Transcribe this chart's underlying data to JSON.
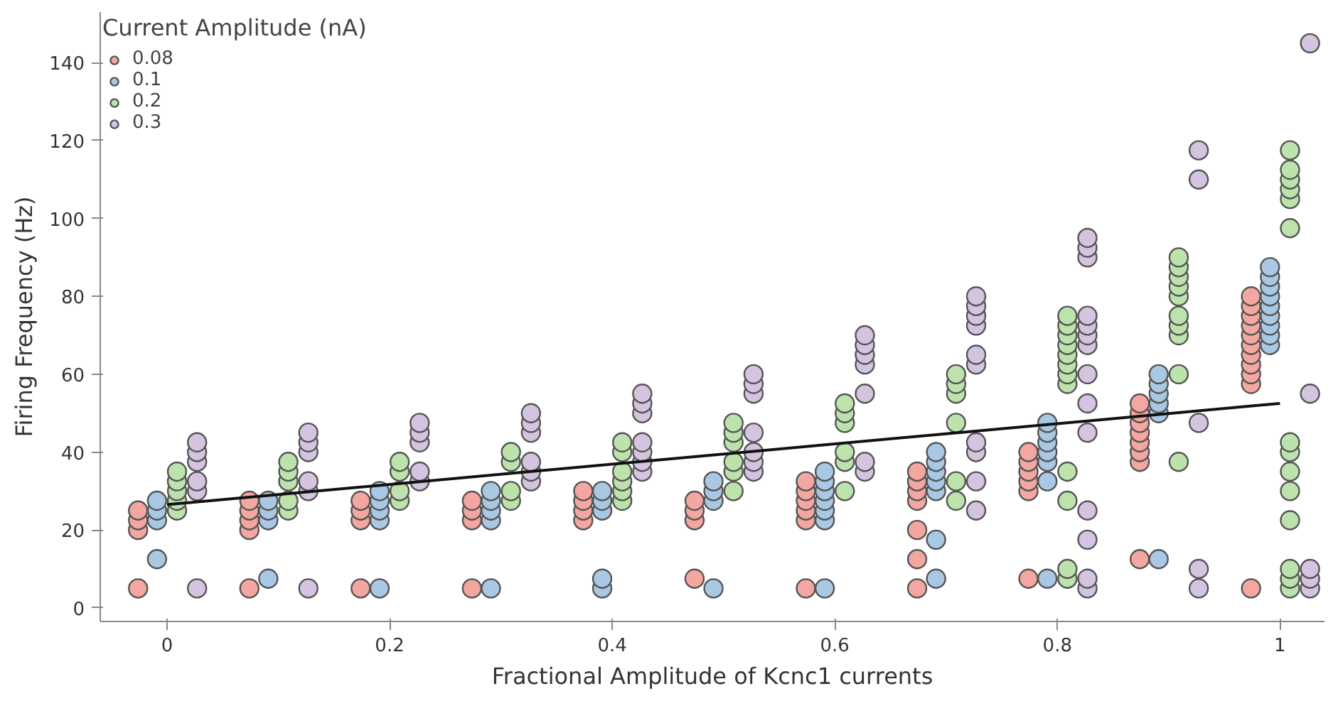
{
  "chart_data": {
    "type": "scatter",
    "xlabel": "Fractional Amplitude of Kcnc1 currents",
    "ylabel": "Firing Frequency (Hz)",
    "legend_title": "Current Amplitude (nA)",
    "legend": "top left",
    "grid": false,
    "xlim": [
      -0.06,
      1.04
    ],
    "ylim": [
      -3.5,
      153
    ],
    "xticks": [
      0,
      0.2,
      0.4,
      0.6,
      0.8,
      1
    ],
    "yticks": [
      0,
      20,
      40,
      60,
      80,
      100,
      120,
      140
    ],
    "series": [
      {
        "name": "0.08",
        "color": "#f4a6a0",
        "marker": "circle",
        "x": [
          -0.026,
          -0.026,
          -0.026,
          -0.026,
          0.074,
          0.074,
          0.074,
          0.074,
          0.074,
          0.174,
          0.174,
          0.174,
          0.174,
          0.274,
          0.274,
          0.274,
          0.274,
          0.374,
          0.374,
          0.374,
          0.374,
          0.474,
          0.474,
          0.474,
          0.474,
          0.574,
          0.574,
          0.574,
          0.574,
          0.574,
          0.574,
          0.674,
          0.674,
          0.674,
          0.674,
          0.674,
          0.674,
          0.674,
          0.774,
          0.774,
          0.774,
          0.774,
          0.774,
          0.774,
          0.874,
          0.874,
          0.874,
          0.874,
          0.874,
          0.874,
          0.874,
          0.874,
          0.974,
          0.974,
          0.974,
          0.974,
          0.974,
          0.974,
          0.974,
          0.974,
          0.974,
          0.974,
          0.974
        ],
        "values": [
          5,
          20,
          22.5,
          25,
          5,
          20,
          22.5,
          25,
          27.5,
          5,
          22.5,
          25,
          27.5,
          5,
          22.5,
          25,
          27.5,
          22.5,
          25,
          27.5,
          30,
          7.5,
          22.5,
          25,
          27.5,
          5,
          22.5,
          25,
          27.5,
          30,
          32.5,
          5,
          12.5,
          20,
          27.5,
          30,
          32.5,
          35,
          7.5,
          30,
          32.5,
          35,
          37.5,
          40,
          12.5,
          37.5,
          40,
          42.5,
          45,
          47.5,
          50,
          52.5,
          5,
          57.5,
          60,
          62.5,
          65,
          67.5,
          70,
          72.5,
          75,
          77.5,
          80
        ]
      },
      {
        "name": "0.1",
        "color": "#a8c8e4",
        "marker": "circle",
        "x": [
          -0.009,
          -0.009,
          -0.009,
          -0.009,
          0.091,
          0.091,
          0.091,
          0.091,
          0.191,
          0.191,
          0.191,
          0.191,
          0.191,
          0.291,
          0.291,
          0.291,
          0.291,
          0.291,
          0.391,
          0.391,
          0.391,
          0.391,
          0.391,
          0.491,
          0.491,
          0.491,
          0.491,
          0.591,
          0.591,
          0.591,
          0.591,
          0.591,
          0.591,
          0.591,
          0.691,
          0.691,
          0.691,
          0.691,
          0.691,
          0.691,
          0.691,
          0.791,
          0.791,
          0.791,
          0.791,
          0.791,
          0.791,
          0.791,
          0.891,
          0.891,
          0.891,
          0.891,
          0.891,
          0.891,
          0.991,
          0.991,
          0.991,
          0.991,
          0.991,
          0.991,
          0.991,
          0.991,
          0.991
        ],
        "values": [
          12.5,
          22.5,
          25,
          27.5,
          7.5,
          22.5,
          25,
          27.5,
          5,
          22.5,
          25,
          27.5,
          30,
          5,
          22.5,
          25,
          27.5,
          30,
          5,
          7.5,
          25,
          27.5,
          30,
          5,
          27.5,
          30,
          32.5,
          5,
          22.5,
          25,
          27.5,
          30,
          32.5,
          35,
          7.5,
          17.5,
          30,
          32.5,
          35,
          37.5,
          40,
          7.5,
          32.5,
          37.5,
          40,
          42.5,
          45,
          47.5,
          12.5,
          50,
          52.5,
          55,
          57.5,
          60,
          67.5,
          70,
          72.5,
          75,
          77.5,
          80,
          82.5,
          85,
          87.5
        ]
      },
      {
        "name": "0.2",
        "color": "#bde3ad",
        "marker": "circle",
        "x": [
          0.009,
          0.009,
          0.009,
          0.009,
          0.009,
          0.109,
          0.109,
          0.109,
          0.109,
          0.109,
          0.209,
          0.209,
          0.209,
          0.209,
          0.309,
          0.309,
          0.309,
          0.309,
          0.409,
          0.409,
          0.409,
          0.409,
          0.409,
          0.409,
          0.509,
          0.509,
          0.509,
          0.509,
          0.509,
          0.509,
          0.609,
          0.609,
          0.609,
          0.609,
          0.609,
          0.609,
          0.709,
          0.709,
          0.709,
          0.709,
          0.709,
          0.709,
          0.809,
          0.809,
          0.809,
          0.809,
          0.809,
          0.809,
          0.809,
          0.809,
          0.809,
          0.809,
          0.809,
          0.809,
          0.909,
          0.909,
          0.909,
          0.909,
          0.909,
          0.909,
          0.909,
          0.909,
          0.909,
          0.909,
          1.009,
          1.009,
          1.009,
          1.009,
          1.009,
          1.009,
          1.009,
          1.009,
          1.009,
          1.009,
          1.009,
          1.009,
          1.009,
          1.009
        ],
        "values": [
          25,
          27.5,
          30,
          32.5,
          35,
          25,
          27.5,
          32.5,
          35,
          37.5,
          27.5,
          30,
          35,
          37.5,
          27.5,
          30,
          37.5,
          40,
          27.5,
          30,
          32.5,
          35,
          40,
          42.5,
          30,
          35,
          37.5,
          42.5,
          45,
          47.5,
          30,
          37.5,
          40,
          47.5,
          50,
          52.5,
          27.5,
          32.5,
          47.5,
          55,
          57.5,
          60,
          7.5,
          10,
          27.5,
          35,
          57.5,
          60,
          62.5,
          65,
          67.5,
          70,
          72.5,
          75,
          37.5,
          60,
          70,
          72.5,
          75,
          80,
          82.5,
          85,
          87.5,
          90,
          5,
          7.5,
          10,
          22.5,
          30,
          35,
          40,
          42.5,
          97.5,
          105,
          107.5,
          110,
          112.5,
          117.5
        ]
      },
      {
        "name": "0.3",
        "color": "#d5c4e0",
        "marker": "circle",
        "x": [
          0.027,
          0.027,
          0.027,
          0.027,
          0.027,
          0.027,
          0.127,
          0.127,
          0.127,
          0.127,
          0.127,
          0.127,
          0.227,
          0.227,
          0.227,
          0.227,
          0.227,
          0.327,
          0.327,
          0.327,
          0.327,
          0.327,
          0.327,
          0.427,
          0.427,
          0.427,
          0.427,
          0.427,
          0.427,
          0.427,
          0.527,
          0.527,
          0.527,
          0.527,
          0.527,
          0.527,
          0.527,
          0.627,
          0.627,
          0.627,
          0.627,
          0.627,
          0.627,
          0.627,
          0.727,
          0.727,
          0.727,
          0.727,
          0.727,
          0.727,
          0.727,
          0.727,
          0.727,
          0.727,
          0.827,
          0.827,
          0.827,
          0.827,
          0.827,
          0.827,
          0.827,
          0.827,
          0.827,
          0.827,
          0.827,
          0.827,
          0.827,
          0.827,
          0.927,
          0.927,
          0.927,
          0.927,
          0.927,
          1.027,
          1.027,
          1.027,
          1.027,
          1.027
        ],
        "values": [
          5,
          30,
          32.5,
          37.5,
          40,
          42.5,
          5,
          30,
          32.5,
          40,
          42.5,
          45,
          32.5,
          35,
          42.5,
          45,
          47.5,
          32.5,
          35,
          37.5,
          45,
          47.5,
          50,
          35,
          37.5,
          40,
          42.5,
          50,
          52.5,
          55,
          35,
          37.5,
          40,
          45,
          55,
          57.5,
          60,
          35,
          37.5,
          55,
          62.5,
          65,
          67.5,
          70,
          25,
          32.5,
          40,
          42.5,
          62.5,
          65,
          72.5,
          75,
          77.5,
          80,
          5,
          7.5,
          17.5,
          25,
          45,
          52.5,
          60,
          67.5,
          70,
          72.5,
          75,
          90,
          92.5,
          95,
          5,
          10,
          47.5,
          110,
          117.5,
          5,
          7.5,
          10,
          55,
          145
        ]
      },
      {
        "type": "line",
        "color": "#111111",
        "x": [
          0,
          1
        ],
        "values": [
          26.5,
          52.5
        ]
      }
    ]
  }
}
